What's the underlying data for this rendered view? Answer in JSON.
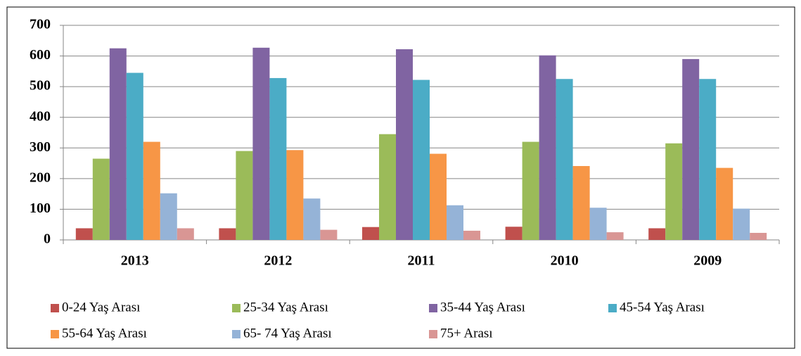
{
  "chart_data": {
    "type": "bar",
    "categories": [
      "2013",
      "2012",
      "2011",
      "2010",
      "2009"
    ],
    "series": [
      {
        "name": "0-24 Yaş Arası",
        "color": "#c0504d",
        "values": [
          38,
          38,
          42,
          43,
          38
        ]
      },
      {
        "name": "25-34 Yaş Arası",
        "color": "#9bbb59",
        "values": [
          265,
          290,
          345,
          320,
          315
        ]
      },
      {
        "name": "35-44 Yaş Arası",
        "color": "#8064a2",
        "values": [
          625,
          627,
          622,
          602,
          590
        ]
      },
      {
        "name": "45-54 Yaş Arası",
        "color": "#4bacc6",
        "values": [
          545,
          528,
          522,
          525,
          525
        ]
      },
      {
        "name": "55-64 Yaş Arası",
        "color": "#f79646",
        "values": [
          320,
          293,
          281,
          241,
          235
        ]
      },
      {
        "name": "65- 74 Yaş Arası",
        "color": "#95b3d7",
        "values": [
          152,
          135,
          113,
          105,
          102
        ]
      },
      {
        "name": "75+ Arası",
        "color": "#d99694",
        "values": [
          38,
          33,
          30,
          25,
          23
        ]
      }
    ],
    "ylim": [
      0,
      700
    ],
    "yticks": [
      0,
      100,
      200,
      300,
      400,
      500,
      600,
      700
    ],
    "grid": true,
    "legend": "bottom"
  }
}
